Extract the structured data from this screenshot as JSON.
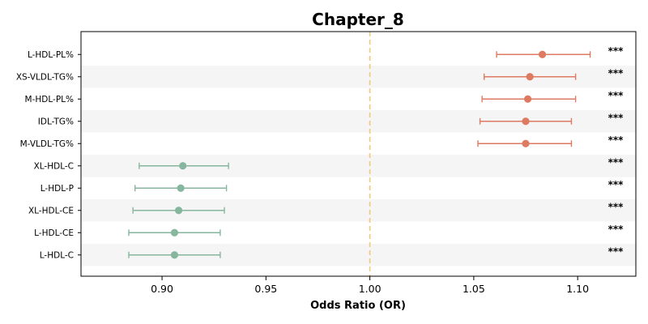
{
  "chart_data": {
    "type": "forest",
    "title": "Chapter_8",
    "xlabel": "Odds Ratio (OR)",
    "ylabel": "",
    "xlim": [
      0.861,
      1.128
    ],
    "xticks": [
      "0.90",
      "0.95",
      "1.00",
      "1.05",
      "1.10"
    ],
    "reference_line": 1.0,
    "colors": {
      "positive": "#de7a61",
      "negative": "#86b79e",
      "reference": "#f2c87f",
      "band": "#f5f5f5"
    },
    "rows": [
      {
        "label": "L-HDL-PL%",
        "or": 1.083,
        "lower": 1.061,
        "upper": 1.106,
        "sig": "***"
      },
      {
        "label": "XS-VLDL-TG%",
        "or": 1.077,
        "lower": 1.055,
        "upper": 1.099,
        "sig": "***"
      },
      {
        "label": "M-HDL-PL%",
        "or": 1.076,
        "lower": 1.054,
        "upper": 1.099,
        "sig": "***"
      },
      {
        "label": "IDL-TG%",
        "or": 1.075,
        "lower": 1.053,
        "upper": 1.097,
        "sig": "***"
      },
      {
        "label": "M-VLDL-TG%",
        "or": 1.075,
        "lower": 1.052,
        "upper": 1.097,
        "sig": "***"
      },
      {
        "label": "XL-HDL-C",
        "or": 0.91,
        "lower": 0.889,
        "upper": 0.932,
        "sig": "***"
      },
      {
        "label": "L-HDL-P",
        "or": 0.909,
        "lower": 0.887,
        "upper": 0.931,
        "sig": "***"
      },
      {
        "label": "XL-HDL-CE",
        "or": 0.908,
        "lower": 0.886,
        "upper": 0.93,
        "sig": "***"
      },
      {
        "label": "L-HDL-CE",
        "or": 0.906,
        "lower": 0.884,
        "upper": 0.928,
        "sig": "***"
      },
      {
        "label": "L-HDL-C",
        "or": 0.906,
        "lower": 0.884,
        "upper": 0.928,
        "sig": "***"
      }
    ]
  }
}
